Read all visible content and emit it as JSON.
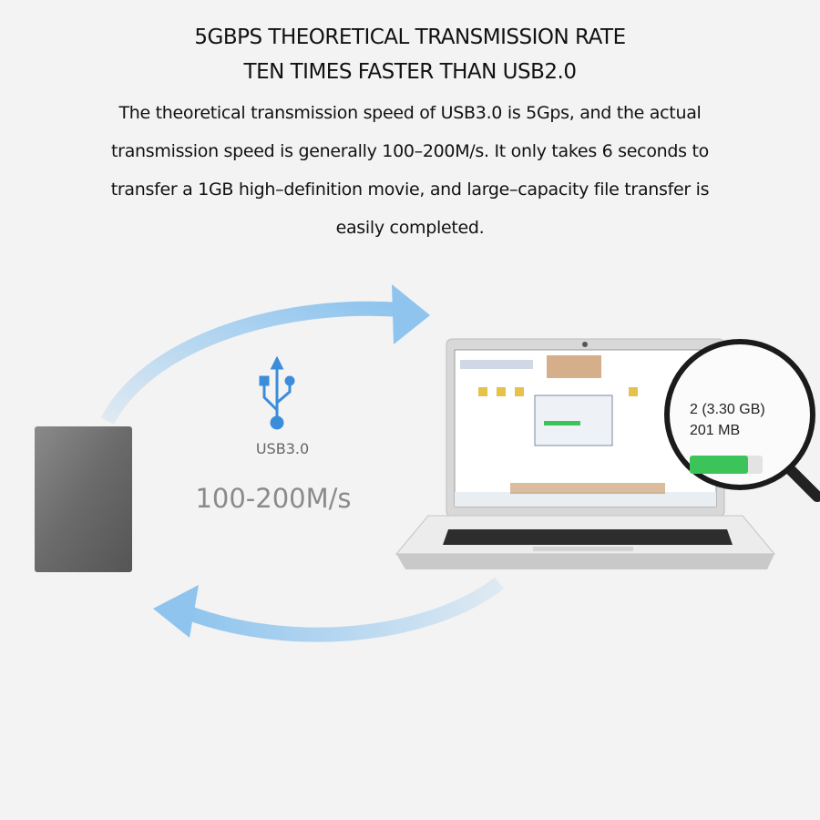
{
  "heading": {
    "line1": "5GBPS THEORETICAL TRANSMISSION RATE",
    "line2": "TEN TIMES FASTER THAN USB2.0"
  },
  "description": {
    "line1": "The theoretical transmission speed of USB3.0 is 5Gps, and the actual",
    "line2": "transmission speed is generally 100–200M/s. It only takes 6 seconds to",
    "line3": "transfer a 1GB high–definition movie, and large–capacity file transfer is",
    "line4": "easily completed."
  },
  "illustration": {
    "usb_icon": "usb-icon",
    "usb_label": "USB3.0",
    "speed_label": "100-200M/s",
    "magnifier": {
      "line1": "2 (3.30 GB)",
      "line2": "201 MB",
      "progress": 0.8
    },
    "colors": {
      "arrow": "#8ec4ee",
      "usb": "#3b8ddb",
      "progress": "#3cc45a"
    }
  }
}
